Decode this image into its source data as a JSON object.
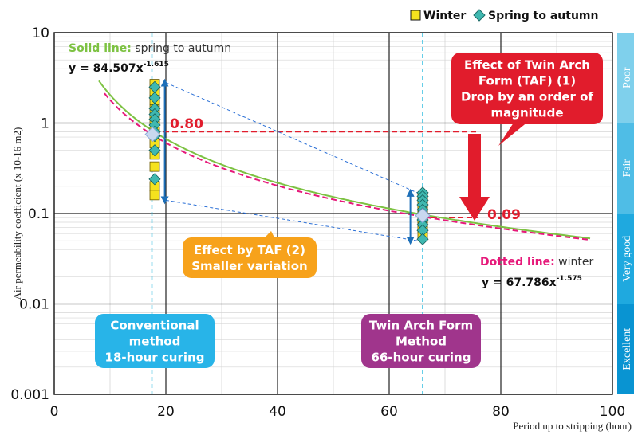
{
  "chart_data": {
    "type": "scatter",
    "xlabel": "Period up to stripping (hour)",
    "ylabel": "Air permeability coefficient (x 10-16 m2)",
    "xlim": [
      0,
      100
    ],
    "ylim": [
      0.001,
      10
    ],
    "y_scale": "log",
    "grid": true,
    "legend_position": "top-right",
    "x_ticks": [
      "0",
      "20",
      "40",
      "60",
      "80",
      "100"
    ],
    "y_ticks": [
      "0.001",
      "0.01",
      "0.1",
      "1",
      "10"
    ],
    "legend": [
      {
        "label": "Winter",
        "marker": "square",
        "color": "#f5e21e"
      },
      {
        "label": "Spring to autumn",
        "marker": "diamond",
        "color": "#3fb8b0"
      }
    ],
    "series": [
      {
        "name": "Winter",
        "marker": "square",
        "color": "#f5e21e",
        "x": [
          18,
          18,
          18,
          18,
          18,
          18,
          18,
          18,
          18,
          18,
          18,
          66,
          66,
          66,
          66,
          66,
          66,
          66,
          66
        ],
        "y": [
          2.7,
          2.2,
          1.8,
          1.4,
          1.1,
          0.8,
          0.6,
          0.45,
          0.33,
          0.2,
          0.16,
          0.15,
          0.13,
          0.11,
          0.1,
          0.09,
          0.08,
          0.07,
          0.06
        ]
      },
      {
        "name": "Spring to autumn",
        "marker": "diamond",
        "color": "#3fb8b0",
        "x": [
          18,
          18,
          18,
          18,
          18,
          18,
          18,
          18,
          18,
          18,
          66,
          66,
          66,
          66,
          66,
          66,
          66,
          66,
          66,
          66
        ],
        "y": [
          2.5,
          1.9,
          1.45,
          1.25,
          1.1,
          0.95,
          0.8,
          0.72,
          0.5,
          0.24,
          0.17,
          0.155,
          0.14,
          0.125,
          0.11,
          0.1,
          0.085,
          0.075,
          0.065,
          0.052
        ]
      }
    ],
    "curves": [
      {
        "name": "Solid line",
        "style": "solid",
        "color": "#7dc242",
        "a": 84.507,
        "b": -1.615,
        "x_from": 8,
        "x_to": 96
      },
      {
        "name": "Dotted line",
        "style": "dashed",
        "color": "#e6197a",
        "a": 67.786,
        "b": -1.575,
        "x_from": 9,
        "x_to": 96
      }
    ],
    "reference_lines": [
      {
        "x": 17.5,
        "label": ""
      },
      {
        "x": 66,
        "label": ""
      }
    ],
    "rating_bands": [
      {
        "label": "Poor",
        "from": 1,
        "to": 10,
        "color": "#7fd0ec"
      },
      {
        "label": "Fair",
        "from": 0.1,
        "to": 1,
        "color": "#4fbde6"
      },
      {
        "label": "Very good",
        "from": 0.01,
        "to": 0.1,
        "color": "#1fa9df"
      },
      {
        "label": "Excellent",
        "from": 0.001,
        "to": 0.01,
        "color": "#0994d2"
      }
    ],
    "annotations": {
      "solid_title": "Solid line:",
      "solid_desc": " spring to autumn",
      "solid_formula": "y = 84.507x",
      "solid_exp": "-1.615",
      "dotted_title": "Dotted line:",
      "dotted_desc": " winter",
      "dotted_formula": "y = 67.786x",
      "dotted_exp": "-1.575",
      "value_high": "0.80",
      "value_low": "0.09",
      "taf1_lines": [
        "Effect of Twin Arch",
        "Form (TAF) (1)",
        "Drop by an order of",
        "magnitude"
      ],
      "taf2_lines": [
        "Effect by TAF (2)",
        "Smaller variation"
      ],
      "conventional_lines": [
        "Conventional",
        "method",
        "18-hour curing"
      ],
      "twin_arch_lines": [
        "Twin Arch Form",
        "Method",
        "66-hour curing"
      ]
    }
  }
}
